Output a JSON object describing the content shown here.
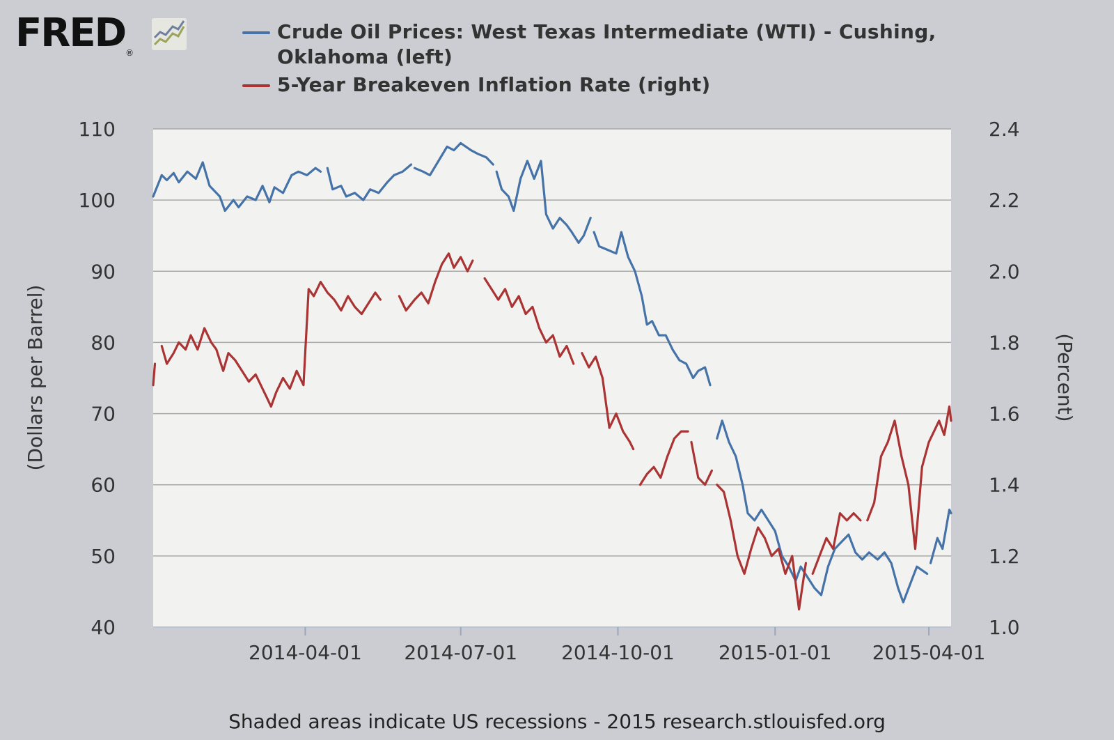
{
  "logo": {
    "text": "FRED",
    "mark": "®"
  },
  "legend": [
    {
      "label": "Crude Oil Prices: West Texas Intermediate (WTI) - Cushing, Oklahoma (left)",
      "color": "#4572a7"
    },
    {
      "label": "5-Year Breakeven Inflation Rate (right)",
      "color": "#aa3333"
    }
  ],
  "footer": "Shaded areas indicate US recessions - 2015 research.stlouisfed.org",
  "chart_data": {
    "type": "line",
    "title": "",
    "xlabel": "",
    "ylabel_left": "(Dollars per Barrel)",
    "ylabel_right": "(Percent)",
    "grid": true,
    "legend_position": "top",
    "x_range": [
      "2014-01-02",
      "2015-04-14"
    ],
    "x_ticks": [
      "2014-04-01",
      "2014-07-01",
      "2014-10-01",
      "2015-01-01",
      "2015-04-01"
    ],
    "y_left": {
      "min": 40,
      "max": 110,
      "ticks": [
        "40",
        "50",
        "60",
        "70",
        "80",
        "90",
        "100",
        "110"
      ]
    },
    "y_right": {
      "min": 1.0,
      "max": 2.4,
      "ticks": [
        "1.0",
        "1.2",
        "1.4",
        "1.6",
        "1.8",
        "2.0",
        "2.2",
        "2.4"
      ]
    },
    "series": [
      {
        "name": "Crude Oil Prices: West Texas Intermediate (WTI) - Cushing, Oklahoma (left)",
        "axis": "left",
        "color": "#4572a7",
        "points": [
          [
            "2014-01-02",
            100.5
          ],
          [
            "2014-01-07",
            103.5
          ],
          [
            "2014-01-10",
            102.8
          ],
          [
            "2014-01-14",
            103.8
          ],
          [
            "2014-01-17",
            102.5
          ],
          [
            "2014-01-22",
            104.0
          ],
          [
            "2014-01-27",
            103.0
          ],
          [
            "2014-01-31",
            105.3
          ],
          [
            "2014-02-04",
            102.0
          ],
          [
            "2014-02-10",
            100.5
          ],
          [
            "2014-02-13",
            98.5
          ],
          [
            "2014-02-18",
            100.0
          ],
          [
            "2014-02-21",
            99.0
          ],
          [
            "2014-02-26",
            100.5
          ],
          [
            "2014-03-03",
            100.0
          ],
          [
            "2014-03-07",
            102.0
          ],
          [
            "2014-03-11",
            99.7
          ],
          [
            "2014-03-14",
            101.8
          ],
          [
            "2014-03-19",
            101.0
          ],
          [
            "2014-03-24",
            103.5
          ],
          [
            "2014-03-28",
            104.0
          ],
          [
            "2014-04-02",
            103.5
          ],
          [
            "2014-04-07",
            104.5
          ],
          [
            "2014-04-10",
            104.0
          ],
          [
            null,
            null
          ],
          [
            "2014-04-14",
            104.5
          ],
          [
            "2014-04-17",
            101.5
          ],
          [
            "2014-04-22",
            102.0
          ],
          [
            "2014-04-25",
            100.5
          ],
          [
            "2014-04-30",
            101.0
          ],
          [
            "2014-05-05",
            100.0
          ],
          [
            "2014-05-09",
            101.5
          ],
          [
            "2014-05-14",
            101.0
          ],
          [
            "2014-05-19",
            102.5
          ],
          [
            "2014-05-23",
            103.5
          ],
          [
            "2014-05-28",
            104.0
          ],
          [
            "2014-06-02",
            105.0
          ],
          [
            null,
            null
          ],
          [
            "2014-06-04",
            104.5
          ],
          [
            "2014-06-09",
            104.0
          ],
          [
            "2014-06-13",
            103.5
          ],
          [
            "2014-06-18",
            105.5
          ],
          [
            "2014-06-23",
            107.5
          ],
          [
            "2014-06-27",
            107.0
          ],
          [
            "2014-07-01",
            108.0
          ],
          [
            "2014-07-07",
            107.0
          ],
          [
            "2014-07-11",
            106.5
          ],
          [
            "2014-07-16",
            106.0
          ],
          [
            "2014-07-20",
            105.0
          ],
          [
            null,
            null
          ],
          [
            "2014-07-22",
            104.0
          ],
          [
            "2014-07-25",
            101.5
          ],
          [
            "2014-07-29",
            100.5
          ],
          [
            "2014-08-01",
            98.5
          ],
          [
            "2014-08-05",
            103.0
          ],
          [
            "2014-08-09",
            105.5
          ],
          [
            "2014-08-13",
            103.0
          ],
          [
            "2014-08-17",
            105.5
          ],
          [
            "2014-08-20",
            98.0
          ],
          [
            "2014-08-24",
            96.0
          ],
          [
            "2014-08-28",
            97.5
          ],
          [
            "2014-09-01",
            96.5
          ],
          [
            "2014-09-04",
            95.5
          ],
          [
            "2014-09-08",
            94.0
          ],
          [
            "2014-09-11",
            95.0
          ],
          [
            "2014-09-15",
            97.5
          ],
          [
            null,
            null
          ],
          [
            "2014-09-17",
            95.5
          ],
          [
            "2014-09-20",
            93.5
          ],
          [
            "2014-09-25",
            93.0
          ],
          [
            "2014-09-30",
            92.5
          ],
          [
            "2014-10-03",
            95.5
          ],
          [
            "2014-10-07",
            92.0
          ],
          [
            "2014-10-11",
            90.0
          ],
          [
            "2014-10-15",
            86.5
          ],
          [
            "2014-10-18",
            82.5
          ],
          [
            "2014-10-21",
            83.0
          ],
          [
            "2014-10-25",
            81.0
          ],
          [
            "2014-10-29",
            81.0
          ],
          [
            "2014-11-02",
            79.0
          ],
          [
            "2014-11-06",
            77.5
          ],
          [
            "2014-11-10",
            77.0
          ],
          [
            "2014-11-14",
            75.0
          ],
          [
            "2014-11-17",
            76.0
          ],
          [
            "2014-11-21",
            76.5
          ],
          [
            "2014-11-24",
            74.0
          ],
          [
            null,
            null
          ],
          [
            "2014-11-28",
            66.5
          ],
          [
            "2014-12-01",
            69.0
          ],
          [
            "2014-12-05",
            66.0
          ],
          [
            "2014-12-09",
            64.0
          ],
          [
            "2014-12-13",
            60.0
          ],
          [
            "2014-12-16",
            56.0
          ],
          [
            "2014-12-20",
            55.0
          ],
          [
            "2014-12-24",
            56.5
          ],
          [
            "2014-12-28",
            55.0
          ],
          [
            "2015-01-01",
            53.5
          ],
          [
            "2015-01-05",
            50.0
          ],
          [
            "2015-01-09",
            48.5
          ],
          [
            "2015-01-13",
            46.5
          ],
          [
            "2015-01-16",
            48.5
          ],
          [
            "2015-01-20",
            47.0
          ],
          [
            "2015-01-24",
            45.5
          ],
          [
            "2015-01-28",
            44.5
          ],
          [
            "2015-02-01",
            48.5
          ],
          [
            "2015-02-05",
            51.0
          ],
          [
            "2015-02-09",
            52.0
          ],
          [
            "2015-02-13",
            53.0
          ],
          [
            "2015-02-17",
            50.5
          ],
          [
            "2015-02-21",
            49.5
          ],
          [
            "2015-02-25",
            50.5
          ],
          [
            "2015-03-02",
            49.5
          ],
          [
            "2015-03-06",
            50.5
          ],
          [
            "2015-03-10",
            49.0
          ],
          [
            "2015-03-14",
            45.5
          ],
          [
            "2015-03-17",
            43.5
          ],
          [
            "2015-03-21",
            46.0
          ],
          [
            "2015-03-25",
            48.5
          ],
          [
            "2015-03-28",
            48.0
          ],
          [
            "2015-03-31",
            47.5
          ],
          [
            null,
            null
          ],
          [
            "2015-04-02",
            49.0
          ],
          [
            "2015-04-06",
            52.5
          ],
          [
            "2015-04-09",
            51.0
          ],
          [
            "2015-04-13",
            56.5
          ],
          [
            "2015-04-14",
            56.0
          ]
        ]
      },
      {
        "name": "5-Year Breakeven Inflation Rate (right)",
        "axis": "right",
        "color": "#aa3333",
        "points": [
          [
            "2014-01-02",
            1.68
          ],
          [
            "2014-01-03",
            1.74
          ],
          [
            null,
            null
          ],
          [
            "2014-01-07",
            1.79
          ],
          [
            "2014-01-10",
            1.74
          ],
          [
            "2014-01-14",
            1.77
          ],
          [
            "2014-01-17",
            1.8
          ],
          [
            "2014-01-21",
            1.78
          ],
          [
            "2014-01-24",
            1.82
          ],
          [
            "2014-01-28",
            1.78
          ],
          [
            "2014-02-01",
            1.84
          ],
          [
            "2014-02-05",
            1.8
          ],
          [
            "2014-02-08",
            1.78
          ],
          [
            "2014-02-12",
            1.72
          ],
          [
            "2014-02-15",
            1.77
          ],
          [
            "2014-02-19",
            1.75
          ],
          [
            "2014-02-23",
            1.72
          ],
          [
            "2014-02-27",
            1.69
          ],
          [
            "2014-03-03",
            1.71
          ],
          [
            "2014-03-06",
            1.68
          ],
          [
            "2014-03-09",
            1.65
          ],
          [
            "2014-03-12",
            1.62
          ],
          [
            "2014-03-15",
            1.66
          ],
          [
            "2014-03-19",
            1.7
          ],
          [
            "2014-03-23",
            1.67
          ],
          [
            "2014-03-27",
            1.72
          ],
          [
            "2014-03-31",
            1.68
          ],
          [
            "2014-04-03",
            1.95
          ],
          [
            "2014-04-06",
            1.93
          ],
          [
            "2014-04-10",
            1.97
          ],
          [
            "2014-04-14",
            1.94
          ],
          [
            "2014-04-18",
            1.92
          ],
          [
            "2014-04-22",
            1.89
          ],
          [
            "2014-04-26",
            1.93
          ],
          [
            "2014-04-30",
            1.9
          ],
          [
            "2014-05-04",
            1.88
          ],
          [
            "2014-05-08",
            1.91
          ],
          [
            "2014-05-12",
            1.94
          ],
          [
            "2014-05-15",
            1.92
          ],
          [
            null,
            null
          ],
          [
            "2014-05-26",
            1.93
          ],
          [
            "2014-05-30",
            1.89
          ],
          [
            "2014-06-04",
            1.92
          ],
          [
            "2014-06-08",
            1.94
          ],
          [
            "2014-06-12",
            1.91
          ],
          [
            "2014-06-16",
            1.97
          ],
          [
            "2014-06-20",
            2.02
          ],
          [
            "2014-06-24",
            2.05
          ],
          [
            "2014-06-27",
            2.01
          ],
          [
            "2014-07-01",
            2.04
          ],
          [
            "2014-07-05",
            2.0
          ],
          [
            "2014-07-08",
            2.03
          ],
          [
            null,
            null
          ],
          [
            "2014-07-15",
            1.98
          ],
          [
            "2014-07-19",
            1.95
          ],
          [
            "2014-07-23",
            1.92
          ],
          [
            "2014-07-27",
            1.95
          ],
          [
            "2014-07-31",
            1.9
          ],
          [
            "2014-08-04",
            1.93
          ],
          [
            "2014-08-08",
            1.88
          ],
          [
            "2014-08-12",
            1.9
          ],
          [
            "2014-08-16",
            1.84
          ],
          [
            "2014-08-20",
            1.8
          ],
          [
            "2014-08-24",
            1.82
          ],
          [
            "2014-08-28",
            1.76
          ],
          [
            "2014-09-01",
            1.79
          ],
          [
            "2014-09-05",
            1.74
          ],
          [
            null,
            null
          ],
          [
            "2014-09-10",
            1.77
          ],
          [
            "2014-09-14",
            1.73
          ],
          [
            "2014-09-18",
            1.76
          ],
          [
            "2014-09-22",
            1.7
          ],
          [
            "2014-09-26",
            1.56
          ],
          [
            "2014-09-30",
            1.6
          ],
          [
            "2014-10-04",
            1.55
          ],
          [
            "2014-10-08",
            1.52
          ],
          [
            "2014-10-10",
            1.5
          ],
          [
            null,
            null
          ],
          [
            "2014-10-14",
            1.4
          ],
          [
            "2014-10-18",
            1.43
          ],
          [
            "2014-10-22",
            1.45
          ],
          [
            "2014-10-26",
            1.42
          ],
          [
            "2014-10-30",
            1.48
          ],
          [
            "2014-11-03",
            1.53
          ],
          [
            "2014-11-07",
            1.55
          ],
          [
            "2014-11-11",
            1.55
          ],
          [
            null,
            null
          ],
          [
            "2014-11-13",
            1.52
          ],
          [
            "2014-11-17",
            1.42
          ],
          [
            "2014-11-21",
            1.4
          ],
          [
            "2014-11-25",
            1.44
          ],
          [
            null,
            null
          ],
          [
            "2014-11-28",
            1.4
          ],
          [
            "2014-12-02",
            1.38
          ],
          [
            "2014-12-06",
            1.3
          ],
          [
            "2014-12-10",
            1.2
          ],
          [
            "2014-12-14",
            1.15
          ],
          [
            "2014-12-18",
            1.22
          ],
          [
            "2014-12-22",
            1.28
          ],
          [
            "2014-12-26",
            1.25
          ],
          [
            "2014-12-30",
            1.2
          ],
          [
            "2015-01-03",
            1.22
          ],
          [
            "2015-01-07",
            1.15
          ],
          [
            "2015-01-11",
            1.2
          ],
          [
            "2015-01-15",
            1.05
          ],
          [
            "2015-01-19",
            1.18
          ],
          [
            null,
            null
          ],
          [
            "2015-01-23",
            1.15
          ],
          [
            "2015-01-27",
            1.2
          ],
          [
            "2015-01-31",
            1.25
          ],
          [
            "2015-02-04",
            1.22
          ],
          [
            "2015-02-08",
            1.32
          ],
          [
            "2015-02-12",
            1.3
          ],
          [
            "2015-02-16",
            1.32
          ],
          [
            "2015-02-20",
            1.3
          ],
          [
            null,
            null
          ],
          [
            "2015-02-24",
            1.3
          ],
          [
            "2015-02-28",
            1.35
          ],
          [
            "2015-03-04",
            1.48
          ],
          [
            "2015-03-08",
            1.52
          ],
          [
            "2015-03-12",
            1.58
          ],
          [
            "2015-03-16",
            1.48
          ],
          [
            "2015-03-20",
            1.4
          ],
          [
            "2015-03-24",
            1.22
          ],
          [
            "2015-03-28",
            1.45
          ],
          [
            "2015-04-01",
            1.52
          ],
          [
            "2015-04-04",
            1.55
          ],
          [
            "2015-04-07",
            1.58
          ],
          [
            "2015-04-10",
            1.54
          ],
          [
            "2015-04-13",
            1.62
          ],
          [
            "2015-04-14",
            1.58
          ]
        ]
      }
    ]
  }
}
